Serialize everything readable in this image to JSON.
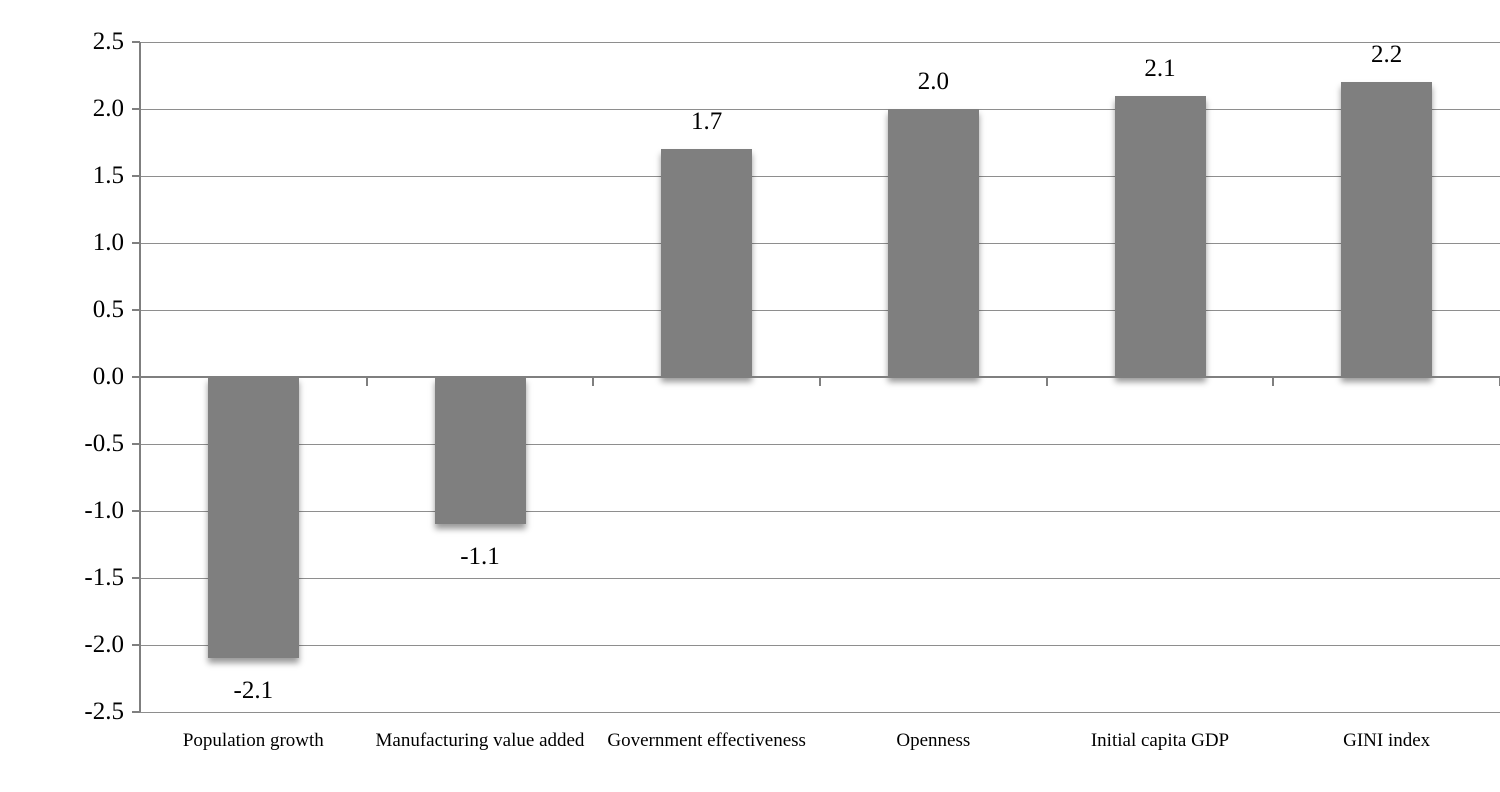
{
  "chart_data": {
    "type": "bar",
    "title": "",
    "legend": "none",
    "grid": "horizontal-major",
    "categories": [
      "Population growth",
      "Manufacturing value added",
      "Government effectiveness",
      "Openness",
      "Initial capita GDP",
      "GINI index"
    ],
    "values": [
      -2.1,
      -1.1,
      1.7,
      2.0,
      2.1,
      2.2
    ],
    "data_labels": [
      "-2.1",
      "-1.1",
      "1.7",
      "2.0",
      "2.1",
      "2.2"
    ],
    "y_ticks": [
      {
        "value": 2.5,
        "label": "2.5"
      },
      {
        "value": 2.0,
        "label": "2.0"
      },
      {
        "value": 1.5,
        "label": "1.5"
      },
      {
        "value": 1.0,
        "label": "1.0"
      },
      {
        "value": 0.5,
        "label": "0.5"
      },
      {
        "value": 0.0,
        "label": "0.0"
      },
      {
        "value": -0.5,
        "label": "-0.5"
      },
      {
        "value": -1.0,
        "label": "-1.0"
      },
      {
        "value": -1.5,
        "label": "-1.5"
      },
      {
        "value": -2.0,
        "label": "-2.0"
      },
      {
        "value": -2.5,
        "label": "-2.5"
      }
    ],
    "ylim": [
      -2.5,
      2.5
    ],
    "xlabel": "",
    "ylabel": "",
    "bar_color": "#7f7f7f",
    "gridline_color": "#8e8e8e",
    "axis_color": "#7f7f7f",
    "text_color": "#000000",
    "background": "#ffffff"
  }
}
